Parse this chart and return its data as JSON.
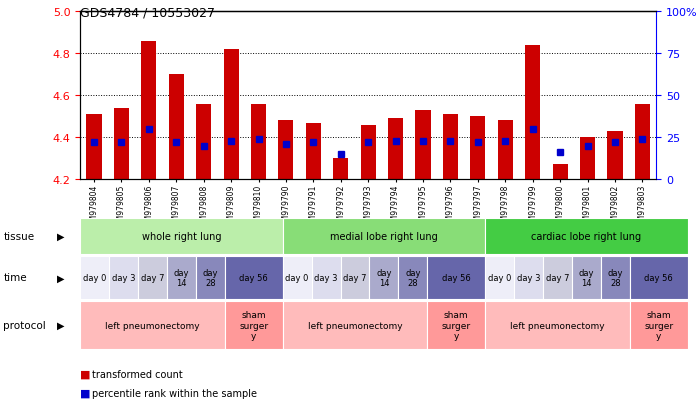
{
  "title": "GDS4784 / 10553027",
  "samples": [
    "GSM979804",
    "GSM979805",
    "GSM979806",
    "GSM979807",
    "GSM979808",
    "GSM979809",
    "GSM979810",
    "GSM979790",
    "GSM979791",
    "GSM979792",
    "GSM979793",
    "GSM979794",
    "GSM979795",
    "GSM979796",
    "GSM979797",
    "GSM979798",
    "GSM979799",
    "GSM979800",
    "GSM979801",
    "GSM979802",
    "GSM979803"
  ],
  "bar_values": [
    4.51,
    4.54,
    4.86,
    4.7,
    4.56,
    4.82,
    4.56,
    4.48,
    4.47,
    4.3,
    4.46,
    4.49,
    4.53,
    4.51,
    4.5,
    4.48,
    4.84,
    4.27,
    4.4,
    4.43,
    4.56
  ],
  "percentile_values": [
    22,
    22,
    30,
    22,
    20,
    23,
    24,
    21,
    22,
    15,
    22,
    23,
    23,
    23,
    22,
    23,
    30,
    16,
    20,
    22,
    24
  ],
  "ylim": [
    4.2,
    5.0
  ],
  "yticks_left": [
    4.2,
    4.4,
    4.6,
    4.8,
    5.0
  ],
  "yticks_right": [
    0,
    25,
    50,
    75,
    100
  ],
  "bar_color": "#cc0000",
  "percentile_color": "#0000cc",
  "tissue_groups": [
    {
      "label": "whole right lung",
      "start": 0,
      "end": 7,
      "color": "#bbeeaa"
    },
    {
      "label": "medial lobe right lung",
      "start": 7,
      "end": 14,
      "color": "#88dd77"
    },
    {
      "label": "cardiac lobe right lung",
      "start": 14,
      "end": 21,
      "color": "#44cc44"
    }
  ],
  "time_entries": [
    [
      0,
      1,
      "day 0",
      "#eeeef8"
    ],
    [
      1,
      1,
      "day 3",
      "#ddddee"
    ],
    [
      2,
      1,
      "day 7",
      "#ccccdd"
    ],
    [
      3,
      1,
      "day\n14",
      "#aaaacc"
    ],
    [
      4,
      1,
      "day\n28",
      "#8888bb"
    ],
    [
      5,
      2,
      "day 56",
      "#6666aa"
    ],
    [
      7,
      1,
      "day 0",
      "#eeeef8"
    ],
    [
      8,
      1,
      "day 3",
      "#ddddee"
    ],
    [
      9,
      1,
      "day 7",
      "#ccccdd"
    ],
    [
      10,
      1,
      "day\n14",
      "#aaaacc"
    ],
    [
      11,
      1,
      "day\n28",
      "#8888bb"
    ],
    [
      12,
      2,
      "day 56",
      "#6666aa"
    ],
    [
      14,
      1,
      "day 0",
      "#eeeef8"
    ],
    [
      15,
      1,
      "day 3",
      "#ddddee"
    ],
    [
      16,
      1,
      "day 7",
      "#ccccdd"
    ],
    [
      17,
      1,
      "day\n14",
      "#aaaacc"
    ],
    [
      18,
      1,
      "day\n28",
      "#8888bb"
    ],
    [
      19,
      2,
      "day 56",
      "#6666aa"
    ]
  ],
  "proto_entries": [
    [
      0,
      5,
      "left pneumonectomy",
      "#ffbbbb"
    ],
    [
      5,
      2,
      "sham\nsurger\ny",
      "#ff9999"
    ],
    [
      7,
      5,
      "left pneumonectomy",
      "#ffbbbb"
    ],
    [
      12,
      2,
      "sham\nsurger\ny",
      "#ff9999"
    ],
    [
      14,
      5,
      "left pneumonectomy",
      "#ffbbbb"
    ],
    [
      19,
      2,
      "sham\nsurger\ny",
      "#ff9999"
    ]
  ]
}
